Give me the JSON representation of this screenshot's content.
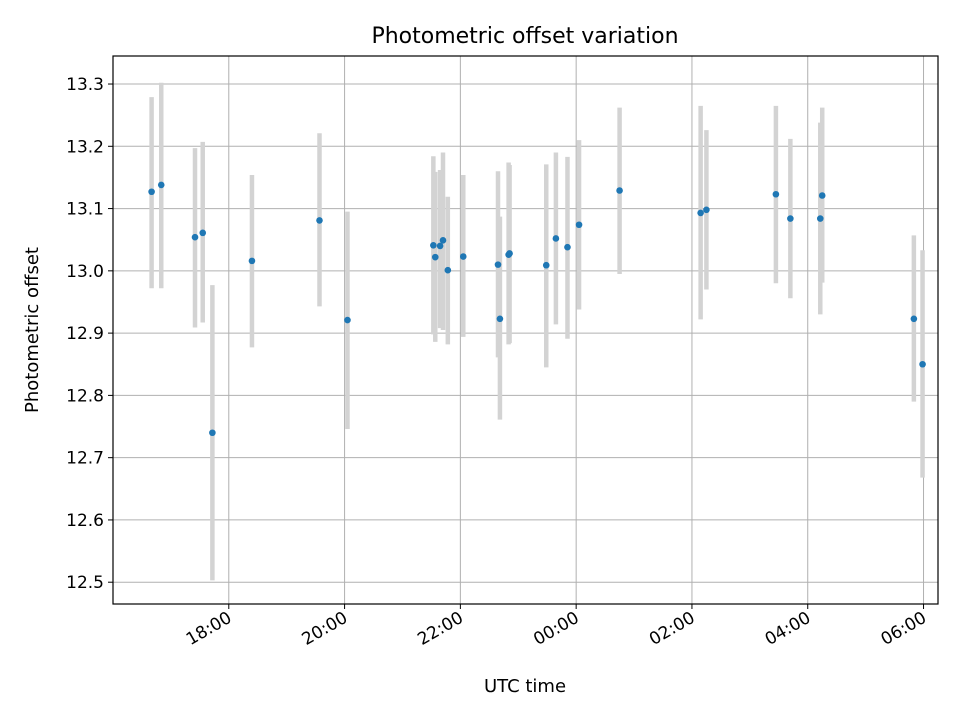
{
  "chart_data": {
    "type": "scatter",
    "title": "Photometric offset variation",
    "xlabel": "UTC time",
    "ylabel": "Photometric offset",
    "x_tick_labels": [
      "18:00",
      "20:00",
      "22:00",
      "00:00",
      "02:00",
      "04:00",
      "06:00"
    ],
    "x_tick_hours": [
      18,
      20,
      22,
      24,
      26,
      28,
      30
    ],
    "xlim_hours": [
      16.0,
      30.25
    ],
    "y_ticks": [
      12.5,
      12.6,
      12.7,
      12.8,
      12.9,
      13.0,
      13.1,
      13.2,
      13.3
    ],
    "y_tick_labels": [
      "12.5",
      "12.6",
      "12.7",
      "12.8",
      "12.9",
      "13.0",
      "13.1",
      "13.2",
      "13.3"
    ],
    "ylim": [
      12.465,
      13.345
    ],
    "grid": true,
    "colors": {
      "points": "#1f77b4",
      "errorbars": "#d3d3d3",
      "grid": "#b0b0b0"
    },
    "points": [
      {
        "t": "16:40",
        "y": 13.127,
        "lo": 12.972,
        "hi": 13.279
      },
      {
        "t": "16:50",
        "y": 13.138,
        "lo": 12.972,
        "hi": 13.302
      },
      {
        "t": "17:25",
        "y": 13.054,
        "lo": 12.909,
        "hi": 13.197
      },
      {
        "t": "17:33",
        "y": 13.061,
        "lo": 12.917,
        "hi": 13.207
      },
      {
        "t": "17:43",
        "y": 12.74,
        "lo": 12.503,
        "hi": 12.977
      },
      {
        "t": "18:24",
        "y": 13.016,
        "lo": 12.877,
        "hi": 13.154
      },
      {
        "t": "19:34",
        "y": 13.081,
        "lo": 12.943,
        "hi": 13.221
      },
      {
        "t": "20:03",
        "y": 12.921,
        "lo": 12.746,
        "hi": 13.095
      },
      {
        "t": "21:32",
        "y": 13.041,
        "lo": 12.898,
        "hi": 13.184
      },
      {
        "t": "21:34",
        "y": 13.022,
        "lo": 12.886,
        "hi": 13.159
      },
      {
        "t": "21:39",
        "y": 13.04,
        "lo": 12.908,
        "hi": 13.162
      },
      {
        "t": "21:42",
        "y": 13.049,
        "lo": 12.905,
        "hi": 13.19
      },
      {
        "t": "21:47",
        "y": 13.001,
        "lo": 12.882,
        "hi": 13.119
      },
      {
        "t": "22:03",
        "y": 13.023,
        "lo": 12.894,
        "hi": 13.154
      },
      {
        "t": "22:39",
        "y": 13.01,
        "lo": 12.861,
        "hi": 13.16
      },
      {
        "t": "22:41",
        "y": 12.923,
        "lo": 12.761,
        "hi": 13.087
      },
      {
        "t": "22:50",
        "y": 13.026,
        "lo": 12.882,
        "hi": 13.174
      },
      {
        "t": "22:51",
        "y": 13.028,
        "lo": 12.884,
        "hi": 13.17
      },
      {
        "t": "23:29",
        "y": 13.009,
        "lo": 12.845,
        "hi": 13.171
      },
      {
        "t": "23:39",
        "y": 13.052,
        "lo": 12.914,
        "hi": 13.19
      },
      {
        "t": "23:51",
        "y": 13.038,
        "lo": 12.891,
        "hi": 13.183
      },
      {
        "t": "00:03",
        "y": 13.074,
        "lo": 12.938,
        "hi": 13.21
      },
      {
        "t": "00:45",
        "y": 13.129,
        "lo": 12.995,
        "hi": 13.262
      },
      {
        "t": "02:09",
        "y": 13.093,
        "lo": 12.922,
        "hi": 13.265
      },
      {
        "t": "02:15",
        "y": 13.098,
        "lo": 12.97,
        "hi": 13.226
      },
      {
        "t": "03:27",
        "y": 13.123,
        "lo": 12.98,
        "hi": 13.265
      },
      {
        "t": "03:42",
        "y": 13.084,
        "lo": 12.956,
        "hi": 13.212
      },
      {
        "t": "04:13",
        "y": 13.084,
        "lo": 12.93,
        "hi": 13.238
      },
      {
        "t": "04:15",
        "y": 13.121,
        "lo": 12.981,
        "hi": 13.262
      },
      {
        "t": "05:50",
        "y": 12.923,
        "lo": 12.79,
        "hi": 13.057
      },
      {
        "t": "05:59",
        "y": 12.85,
        "lo": 12.668,
        "hi": 13.033
      }
    ]
  }
}
